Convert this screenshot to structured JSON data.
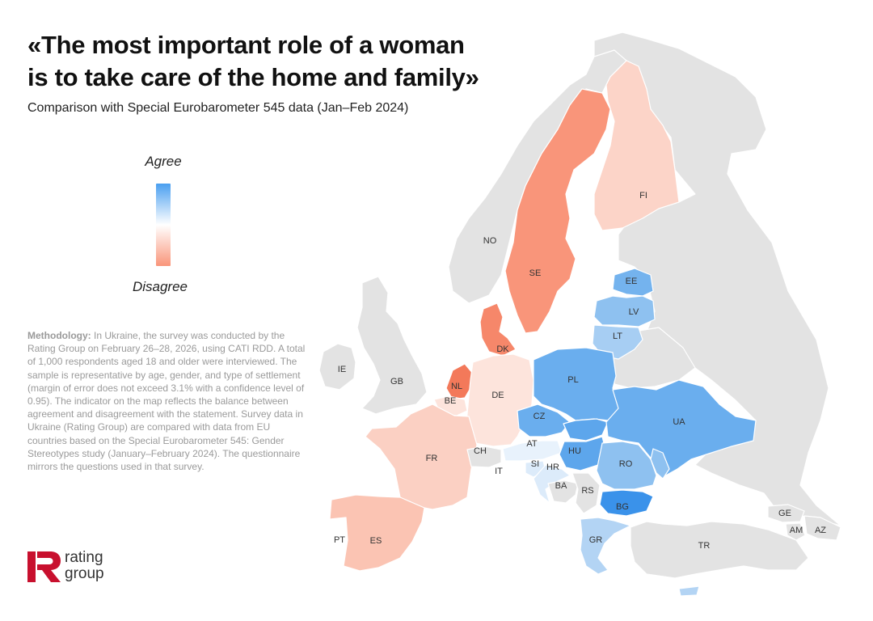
{
  "title": {
    "line1": "«The most important role of a woman",
    "line2": "is to take care of the home and family»"
  },
  "subtitle": "Comparison with Special Eurobarometer 545 data (Jan–Feb 2024)",
  "legend": {
    "agree_label": "Agree",
    "disagree_label": "Disagree",
    "colors": {
      "agree": "#4a9ff0",
      "neutral": "#ffffff",
      "disagree": "#f9957a"
    }
  },
  "methodology": {
    "heading": "Methodology:",
    "text": "In Ukraine, the survey was conducted by the Rating Group on February 26–28, 2026, using CATI RDD. A total of 1,000 respondents aged 18 and older were interviewed. The sample is representative by age, gender, and type of settlement (margin of error does not exceed 3.1% with a confidence level of 0.95). The indicator on the map reflects the balance between agreement and disagreement with the statement. Survey data in Ukraine (Rating Group) are compared with data from EU countries based on the Special Eurobarometer 545: Gender Stereotypes study (January–February 2024). The questionnaire mirrors the questions used in that survey."
  },
  "logo": {
    "line1": "rating",
    "line2": "group",
    "color": "#c8102e"
  },
  "map": {
    "no_data_color": "#e3e3e3",
    "countries": [
      {
        "code": "NO",
        "category": "no-data",
        "fill": "#e3e3e3"
      },
      {
        "code": "SE",
        "category": "disagree",
        "fill": "#f9957a"
      },
      {
        "code": "FI",
        "category": "disagree",
        "fill": "#fcd4c8"
      },
      {
        "code": "EE",
        "category": "agree",
        "fill": "#74b3ee"
      },
      {
        "code": "LV",
        "category": "agree",
        "fill": "#8ec1f0"
      },
      {
        "code": "LT",
        "category": "agree",
        "fill": "#a7cef3"
      },
      {
        "code": "IE",
        "category": "no-data",
        "fill": "#e3e3e3"
      },
      {
        "code": "GB",
        "category": "no-data",
        "fill": "#e3e3e3"
      },
      {
        "code": "DK",
        "category": "disagree",
        "fill": "#f6876a"
      },
      {
        "code": "NL",
        "category": "disagree",
        "fill": "#f3795a"
      },
      {
        "code": "BE",
        "category": "disagree",
        "fill": "#fde4dc"
      },
      {
        "code": "DE",
        "category": "disagree",
        "fill": "#fde4dc"
      },
      {
        "code": "PL",
        "category": "agree",
        "fill": "#6aaeee"
      },
      {
        "code": "CZ",
        "category": "agree",
        "fill": "#6aaeee"
      },
      {
        "code": "SK",
        "category": "agree",
        "fill": "#5da6ec"
      },
      {
        "code": "UA",
        "category": "agree",
        "fill": "#6aaeee"
      },
      {
        "code": "FR",
        "category": "disagree",
        "fill": "#fbd0c3"
      },
      {
        "code": "CH",
        "category": "no-data",
        "fill": "#e3e3e3"
      },
      {
        "code": "AT",
        "category": "agree",
        "fill": "#e8f2fc"
      },
      {
        "code": "HU",
        "category": "agree",
        "fill": "#5da6ec"
      },
      {
        "code": "RO",
        "category": "agree",
        "fill": "#8ec1f0"
      },
      {
        "code": "MD",
        "category": "agree",
        "fill": "#8ec1f0"
      },
      {
        "code": "IT",
        "category": "neutral",
        "fill": "#ffffff"
      },
      {
        "code": "SI",
        "category": "agree",
        "fill": "#dcebfa"
      },
      {
        "code": "HR",
        "category": "agree",
        "fill": "#dcebfa"
      },
      {
        "code": "BA",
        "category": "no-data",
        "fill": "#e3e3e3"
      },
      {
        "code": "RS",
        "category": "no-data",
        "fill": "#e3e3e3"
      },
      {
        "code": "BG",
        "category": "agree",
        "fill": "#3a92ea"
      },
      {
        "code": "GR",
        "category": "agree",
        "fill": "#b3d4f4"
      },
      {
        "code": "PT",
        "category": "neutral",
        "fill": "#ffffff"
      },
      {
        "code": "ES",
        "category": "disagree",
        "fill": "#fbc4b3"
      },
      {
        "code": "TR",
        "category": "no-data",
        "fill": "#e3e3e3"
      },
      {
        "code": "GE",
        "category": "no-data",
        "fill": "#e3e3e3"
      },
      {
        "code": "AM",
        "category": "no-data",
        "fill": "#e3e3e3"
      },
      {
        "code": "AZ",
        "category": "no-data",
        "fill": "#e3e3e3"
      },
      {
        "code": "RU",
        "category": "no-data",
        "fill": "#e3e3e3"
      },
      {
        "code": "BY",
        "category": "no-data",
        "fill": "#e3e3e3"
      }
    ]
  }
}
